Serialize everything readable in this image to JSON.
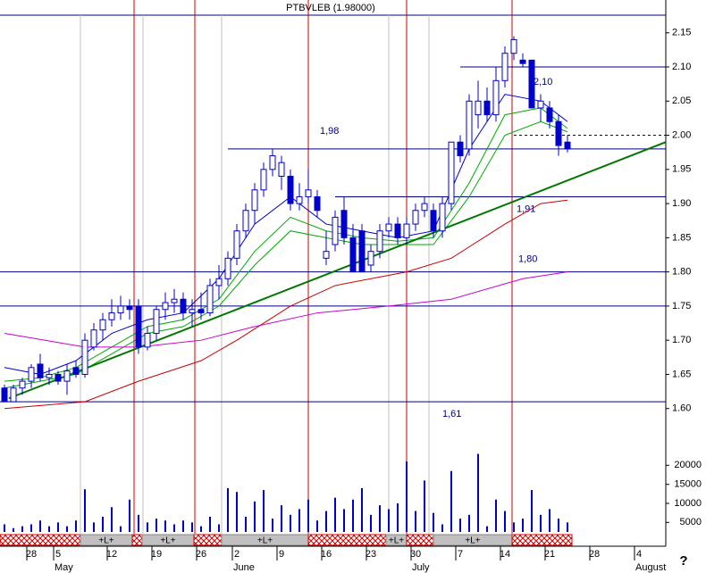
{
  "chart_data": {
    "type": "candlestick",
    "title": "PTBVLEB (1.98000)",
    "xlim": [
      -0.5,
      74
    ],
    "ylim": [
      1.55,
      2.198
    ],
    "xticks": [
      {
        "value": 3,
        "label": "28"
      },
      {
        "value": 6,
        "label": "5"
      },
      {
        "value": 12,
        "label": "12"
      },
      {
        "value": 17,
        "label": "19"
      },
      {
        "value": 22,
        "label": "26"
      },
      {
        "value": 26,
        "label": "2"
      },
      {
        "value": 31,
        "label": "9"
      },
      {
        "value": 36,
        "label": "16"
      },
      {
        "value": 41,
        "label": "23"
      },
      {
        "value": 46,
        "label": "30"
      },
      {
        "value": 51,
        "label": "7"
      },
      {
        "value": 56,
        "label": "14"
      },
      {
        "value": 61,
        "label": "21"
      },
      {
        "value": 66,
        "label": "28"
      },
      {
        "value": 71,
        "label": "4"
      }
    ],
    "months": [
      {
        "value": 6,
        "label": "May"
      },
      {
        "value": 26,
        "label": "June"
      },
      {
        "value": 46,
        "label": "July"
      },
      {
        "value": 71,
        "label": "August"
      }
    ],
    "yticks": [
      {
        "value": 1.6,
        "label": "1.60"
      },
      1.65,
      {
        "value": 1.7,
        "label": "1.70"
      },
      1.75,
      {
        "value": 1.8,
        "label": "1.80"
      },
      1.85,
      {
        "value": 1.9,
        "label": "1.90"
      },
      1.95,
      {
        "value": 2.0,
        "label": "2.00"
      },
      2.05,
      {
        "value": 2.1,
        "label": "2.10"
      },
      2.15
    ],
    "up_color": "#ffffff",
    "down_color": "#0000cc",
    "open": [
      1.63,
      1.61,
      1.63,
      1.64,
      1.665,
      1.645,
      1.65,
      1.64,
      1.66,
      1.65,
      1.69,
      1.715,
      1.73,
      1.74,
      1.75,
      1.75,
      1.69,
      1.71,
      1.745,
      1.755,
      1.76,
      1.74,
      1.745,
      1.74,
      1.78,
      1.79,
      1.82,
      1.86,
      1.89,
      1.92,
      1.95,
      1.94,
      1.94,
      1.9,
      1.91,
      1.91,
      1.82,
      1.84,
      1.89,
      1.85,
      1.86,
      1.81,
      1.83,
      1.86,
      1.87,
      1.85,
      1.87,
      1.89,
      1.89,
      1.86,
      1.9,
      1.99,
      1.98,
      2.03,
      2.05,
      2.03,
      2.08,
      2.12,
      2.11,
      2.11,
      2.04,
      2.04,
      2.02,
      1.99
    ],
    "high": [
      1.635,
      1.635,
      1.645,
      1.665,
      1.68,
      1.66,
      1.655,
      1.665,
      1.67,
      1.71,
      1.725,
      1.74,
      1.76,
      1.765,
      1.76,
      1.76,
      1.72,
      1.75,
      1.77,
      1.775,
      1.77,
      1.76,
      1.77,
      1.79,
      1.81,
      1.83,
      1.87,
      1.9,
      1.93,
      1.96,
      1.98,
      1.97,
      1.95,
      1.93,
      1.95,
      1.92,
      1.86,
      1.89,
      1.91,
      1.87,
      1.87,
      1.84,
      1.87,
      1.88,
      1.88,
      1.88,
      1.9,
      1.91,
      1.9,
      1.91,
      1.99,
      2.0,
      2.06,
      2.08,
      2.07,
      2.1,
      2.13,
      2.145,
      2.12,
      2.11,
      2.06,
      2.05,
      2.03,
      2.0
    ],
    "low": [
      1.61,
      1.61,
      1.62,
      1.63,
      1.64,
      1.635,
      1.635,
      1.62,
      1.645,
      1.645,
      1.685,
      1.7,
      1.72,
      1.73,
      1.73,
      1.68,
      1.685,
      1.7,
      1.73,
      1.74,
      1.73,
      1.72,
      1.73,
      1.735,
      1.76,
      1.78,
      1.81,
      1.85,
      1.87,
      1.91,
      1.94,
      1.92,
      1.89,
      1.89,
      1.9,
      1.88,
      1.81,
      1.83,
      1.84,
      1.8,
      1.8,
      1.8,
      1.82,
      1.85,
      1.84,
      1.84,
      1.86,
      1.88,
      1.85,
      1.85,
      1.89,
      1.96,
      1.97,
      2.01,
      2.02,
      2.02,
      2.07,
      2.11,
      2.1,
      2.04,
      2.02,
      2.01,
      1.97,
      1.975
    ],
    "close": [
      1.61,
      1.63,
      1.64,
      1.66,
      1.645,
      1.65,
      1.64,
      1.655,
      1.65,
      1.7,
      1.715,
      1.73,
      1.74,
      1.75,
      1.745,
      1.69,
      1.71,
      1.745,
      1.755,
      1.76,
      1.74,
      1.745,
      1.74,
      1.78,
      1.79,
      1.82,
      1.86,
      1.89,
      1.92,
      1.95,
      1.97,
      1.96,
      1.9,
      1.91,
      1.92,
      1.89,
      1.83,
      1.88,
      1.85,
      1.8,
      1.8,
      1.83,
      1.86,
      1.87,
      1.85,
      1.87,
      1.89,
      1.9,
      1.86,
      1.9,
      1.99,
      1.97,
      2.05,
      2.05,
      2.03,
      2.08,
      2.12,
      2.14,
      2.105,
      2.04,
      2.05,
      2.02,
      1.985,
      1.98
    ],
    "volume": {
      "ylim": [
        2500,
        25000
      ],
      "yticks": [
        5000,
        10000,
        15000,
        20000
      ],
      "color": "#0000cc",
      "values": [
        4500,
        3500,
        4000,
        4500,
        5500,
        4000,
        5000,
        4000,
        5500,
        13700,
        5000,
        6500,
        9000,
        4000,
        11000,
        7000,
        5000,
        6000,
        5500,
        4500,
        5500,
        5000,
        4000,
        6500,
        4500,
        14000,
        13000,
        6500,
        10500,
        13500,
        6000,
        9500,
        7000,
        8500,
        11000,
        5500,
        8000,
        11500,
        8500,
        11000,
        14000,
        7000,
        9500,
        8500,
        10000,
        21000,
        8000,
        16000,
        7500,
        4500,
        18500,
        6000,
        7000,
        23000,
        4000,
        11000,
        8000,
        5000,
        6000,
        13500,
        7000,
        8500,
        6000,
        5000
      ]
    },
    "overlays": [
      {
        "color": "#0000cc",
        "x": [
          0,
          4,
          8,
          12,
          16,
          20,
          24,
          28,
          32,
          36,
          40,
          44,
          48,
          52,
          56,
          60,
          63
        ],
        "values": [
          1.66,
          1.65,
          1.67,
          1.71,
          1.73,
          1.74,
          1.79,
          1.87,
          1.91,
          1.87,
          1.86,
          1.85,
          1.86,
          1.98,
          2.06,
          2.05,
          2.02
        ]
      },
      {
        "color": "#00aa00",
        "x": [
          0,
          4,
          8,
          12,
          16,
          20,
          24,
          28,
          32,
          36,
          40,
          44,
          48,
          52,
          56,
          60,
          63
        ],
        "values": [
          1.64,
          1.645,
          1.66,
          1.69,
          1.72,
          1.73,
          1.76,
          1.83,
          1.88,
          1.86,
          1.85,
          1.845,
          1.85,
          1.93,
          2.03,
          2.04,
          2.01
        ]
      },
      {
        "color": "#00aa00",
        "x": [
          0,
          4,
          8,
          12,
          16,
          20,
          24,
          28,
          32,
          36,
          40,
          44,
          48,
          52,
          56,
          60,
          63
        ],
        "values": [
          1.63,
          1.64,
          1.65,
          1.68,
          1.71,
          1.72,
          1.75,
          1.81,
          1.86,
          1.85,
          1.84,
          1.84,
          1.84,
          1.91,
          2.0,
          2.02,
          2.005
        ]
      },
      {
        "color": "#cc0000",
        "x": [
          0,
          9,
          15,
          22,
          26,
          32,
          37,
          45,
          50,
          56,
          60,
          63
        ],
        "values": [
          1.6,
          1.61,
          1.64,
          1.67,
          1.7,
          1.75,
          1.78,
          1.8,
          1.82,
          1.87,
          1.9,
          1.905
        ]
      },
      {
        "color": "#cc00cc",
        "x": [
          0,
          9,
          15,
          22,
          28,
          35,
          43,
          50,
          58,
          63
        ],
        "values": [
          1.71,
          1.69,
          1.69,
          1.7,
          1.72,
          1.74,
          1.75,
          1.76,
          1.79,
          1.8
        ]
      }
    ],
    "trendline": {
      "color": "#007700",
      "x": [
        0.5,
        74
      ],
      "values": [
        1.615,
        1.99
      ]
    },
    "levels": [
      {
        "value": 2.1,
        "label": "2,10",
        "start": 51
      },
      {
        "value": 1.98,
        "label": "1,98",
        "start": 25
      },
      {
        "value": 1.91,
        "label": "1,91",
        "start": 37
      },
      {
        "value": 1.8,
        "label": "1,80",
        "start": -0.5
      },
      {
        "value": 1.75,
        "start": -0.5
      },
      {
        "value": 1.61,
        "label": "1,61",
        "start": -0.5
      },
      {
        "value": 2.0,
        "start": 57,
        "dashed": true
      }
    ],
    "event_lines": {
      "color": "#cc0000",
      "x": [
        14.5,
        21.3,
        34,
        45,
        56.8
      ]
    },
    "week_lines": {
      "color": "#c0c0c0",
      "x": [
        8.5,
        15.5,
        24.3,
        43,
        47.5
      ]
    },
    "signals": [
      {
        "start": -0.5,
        "end": 8.5,
        "color": "#cc0000"
      },
      {
        "start": 8.5,
        "end": 14.3,
        "color": "#c0c0c0",
        "label": "+L+"
      },
      {
        "start": 14.3,
        "end": 15.4,
        "color": "#cc0000"
      },
      {
        "start": 15.4,
        "end": 21.2,
        "color": "#c0c0c0",
        "label": "+L+"
      },
      {
        "start": 21.2,
        "end": 24.3,
        "color": "#cc0000"
      },
      {
        "start": 24.3,
        "end": 34,
        "color": "#c0c0c0",
        "label": "+L+"
      },
      {
        "start": 34,
        "end": 42.7,
        "color": "#cc0000"
      },
      {
        "start": 42.7,
        "end": 45,
        "color": "#c0c0c0",
        "label": "+L+"
      },
      {
        "start": 45,
        "end": 48,
        "color": "#cc0000"
      },
      {
        "start": 48,
        "end": 56.8,
        "color": "#c0c0c0",
        "label": "+L+"
      },
      {
        "start": 56.8,
        "end": 63.5,
        "color": "#cc0000"
      }
    ],
    "help": "?"
  }
}
